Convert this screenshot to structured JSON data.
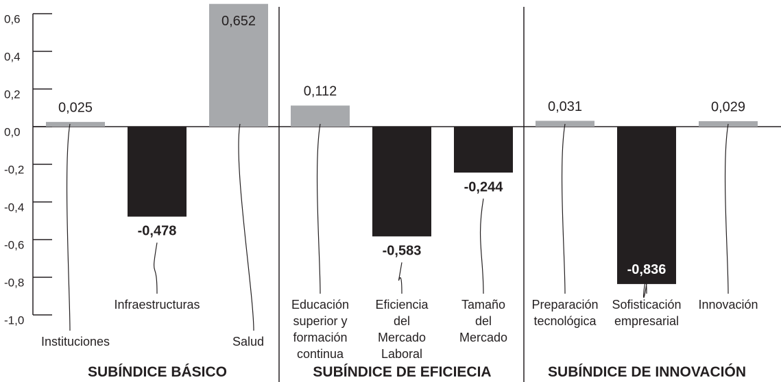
{
  "chart_data": {
    "type": "bar",
    "colors": {
      "positive": "#a7a9ac",
      "negative": "#231f20"
    },
    "ylim": [
      -1.0,
      0.6
    ],
    "yticks": [
      {
        "value": 0.6,
        "label": "0,6"
      },
      {
        "value": 0.4,
        "label": "0,4"
      },
      {
        "value": 0.2,
        "label": "0,2"
      },
      {
        "value": 0.0,
        "label": "0,0"
      },
      {
        "value": -0.2,
        "label": "-0,2"
      },
      {
        "value": -0.4,
        "label": "-0,4"
      },
      {
        "value": -0.6,
        "label": "-0,6"
      },
      {
        "value": -0.8,
        "label": "-0,8"
      },
      {
        "value": -1.0,
        "label": "-1,0"
      }
    ],
    "groups": [
      {
        "name": "SUBÍNDICE BÁSICO",
        "categories": [
          "Instituciones",
          "Infraestructuras",
          "Salud"
        ],
        "values": [
          0.025,
          -0.478,
          0.652
        ],
        "value_labels": [
          "0,025",
          "-0,478",
          "0,652"
        ]
      },
      {
        "name": "SUBÍNDICE DE EFICIECIA",
        "categories": [
          "Educación\nsuperior y\nformación\ncontinua",
          "Eficiencia\ndel\nMercado\nLaboral",
          "Tamaño\ndel\nMercado"
        ],
        "values": [
          0.112,
          -0.583,
          -0.244
        ],
        "value_labels": [
          "0,112",
          "-0,583",
          "-0,244"
        ]
      },
      {
        "name": "SUBÍNDICE DE INNOVACIÓN",
        "categories": [
          "Preparación\ntecnológica",
          "Sofisticación\nempresarial",
          "Innovación"
        ],
        "values": [
          0.031,
          -0.836,
          0.029
        ],
        "value_labels": [
          "0,031",
          "-0,836",
          "0,029"
        ]
      }
    ]
  }
}
